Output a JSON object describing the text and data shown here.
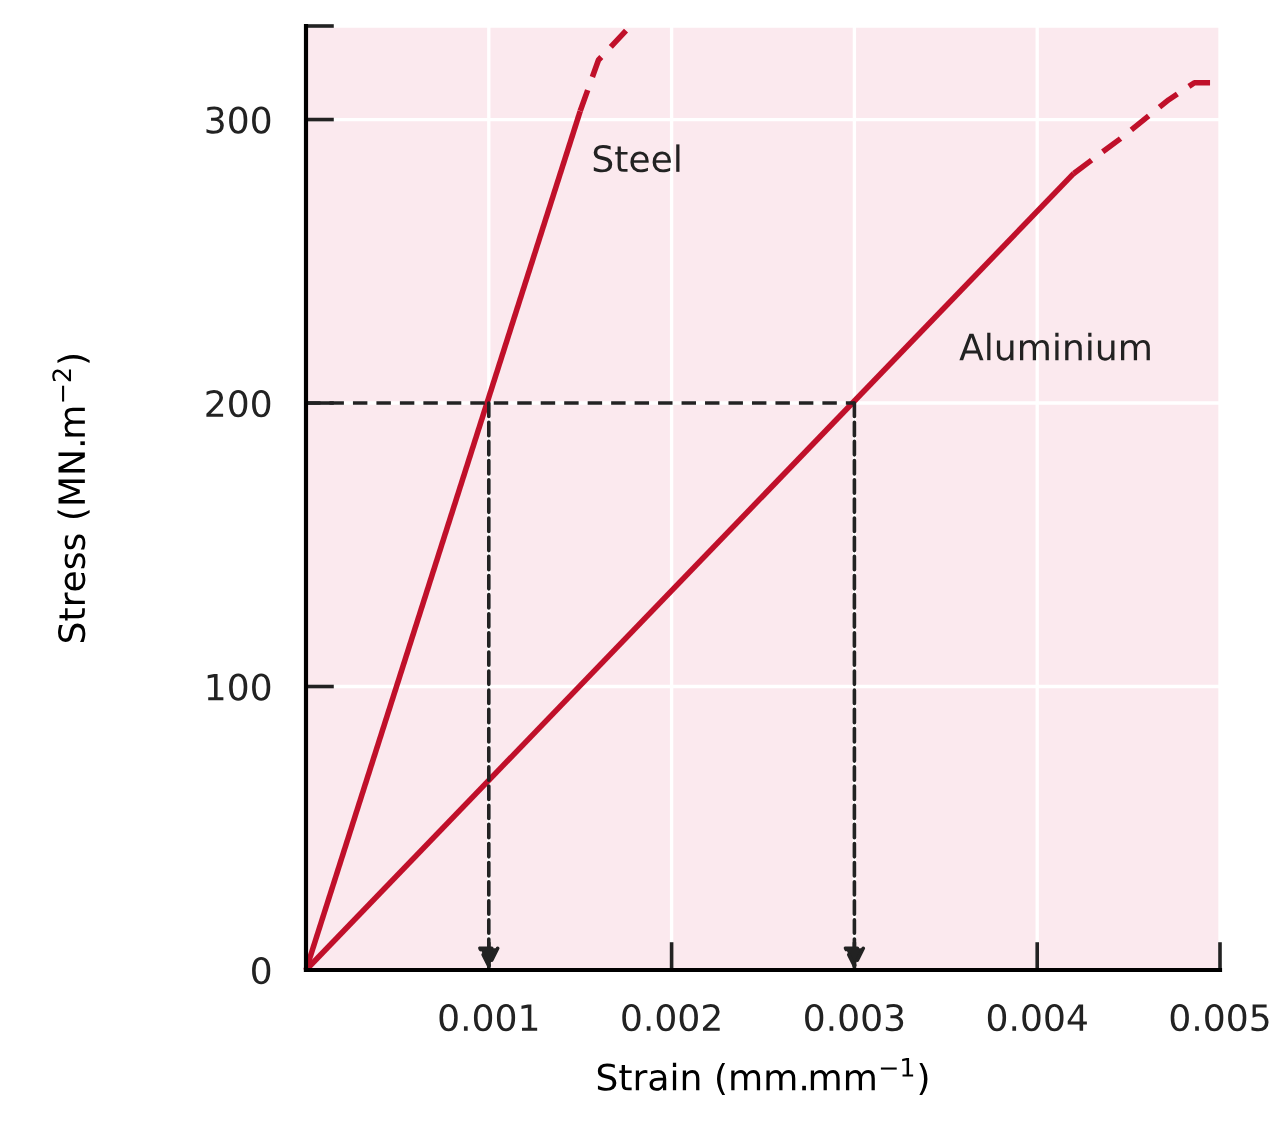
{
  "chart_data": {
    "type": "line",
    "xlabel": "Strain (mm.mm$^{−1}$)",
    "ylabel": "Stress (MN.m$^{−2}$)",
    "xlim": [
      0,
      0.005
    ],
    "ylim": [
      0,
      333
    ],
    "xticks": [
      0.001,
      0.002,
      0.003,
      0.004,
      0.005
    ],
    "yticks": [
      0,
      100,
      200,
      300,
      {
        "value": 333,
        "label": null
      }
    ],
    "grid": true,
    "marker": "none",
    "series": [
      {
        "name": "Steel",
        "color": "#c0102a",
        "line_style": "solid",
        "x": [
          0,
          0.0015
        ],
        "values": [
          0,
          303
        ]
      },
      {
        "color": "#c0102a",
        "line_style": "dashed",
        "x": [
          0.0015,
          0.0016,
          0.00176
        ],
        "values": [
          303,
          321,
          332
        ]
      },
      {
        "name": "Aluminium",
        "color": "#c0102a",
        "line_style": "solid",
        "x": [
          0,
          0.0042
        ],
        "values": [
          0,
          281
        ]
      },
      {
        "color": "#c0102a",
        "line_style": "dashed",
        "x": [
          0.0042,
          0.00445,
          0.00472,
          0.00486,
          0.00498
        ],
        "values": [
          281,
          293,
          307,
          313,
          313
        ]
      },
      {
        "color": "#222222",
        "line_style": "dashed",
        "x": [
          0,
          0.001,
          0.003
        ],
        "values": [
          200,
          200,
          200
        ]
      }
    ]
  }
}
